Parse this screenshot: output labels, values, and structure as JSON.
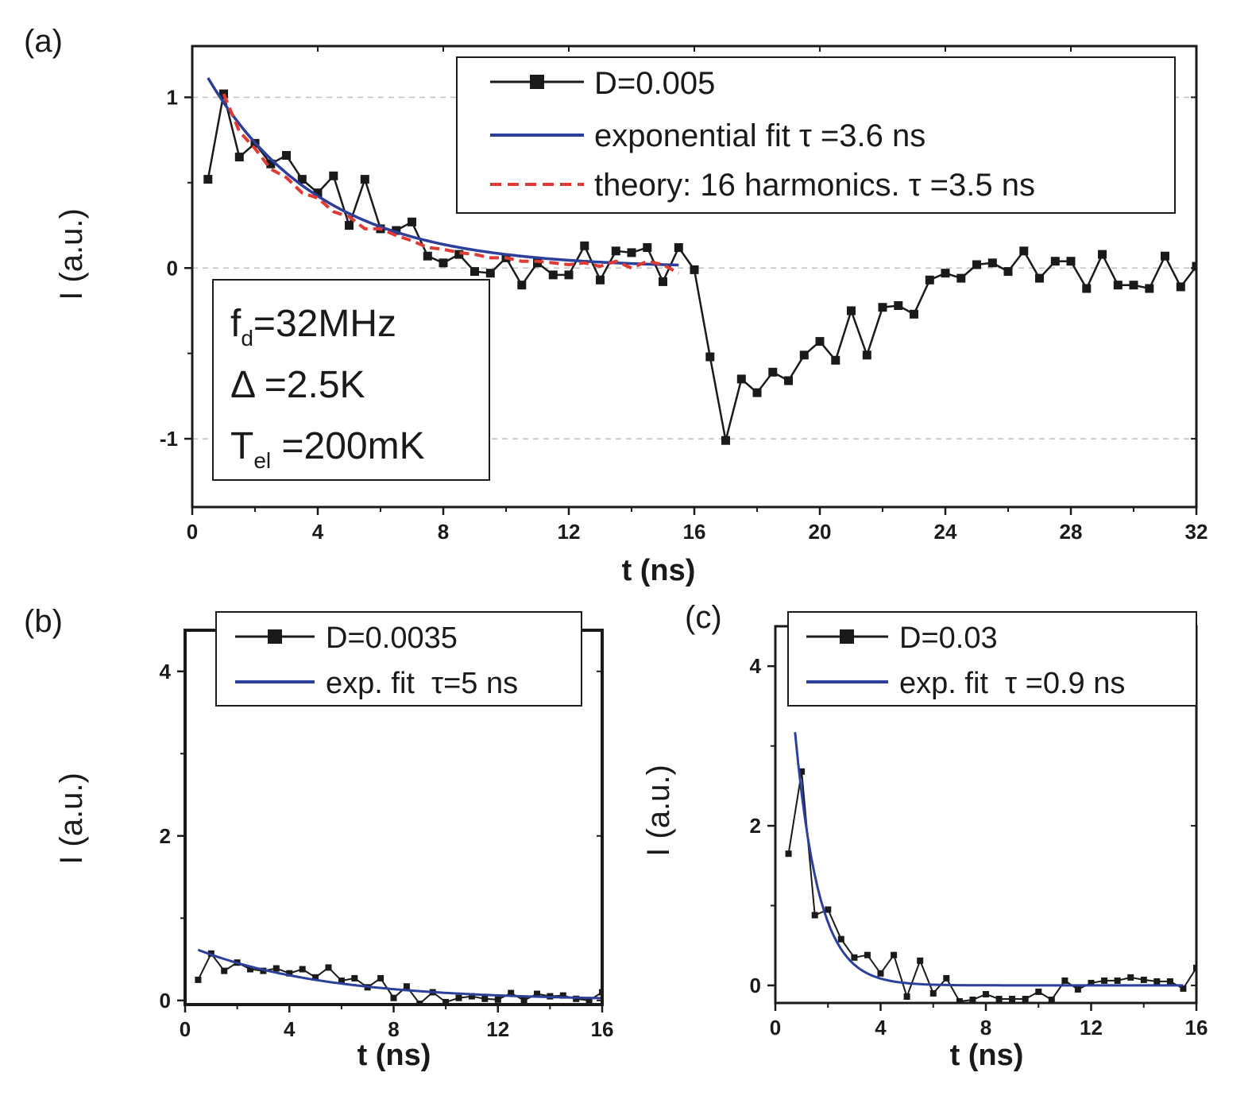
{
  "chart_data": [
    {
      "panel": "(a)",
      "type": "line",
      "xlabel": "t (ns)",
      "ylabel": "I (a.u.)",
      "xlim": [
        0,
        32
      ],
      "ylim": [
        -1.4,
        1.3
      ],
      "xticks": [
        "0",
        "4",
        "8",
        "12",
        "16",
        "20",
        "24",
        "28",
        "32"
      ],
      "yticks": [
        "-1",
        "0",
        "1"
      ],
      "grid_y": [
        -1,
        0,
        1
      ],
      "legend_position": "top-right",
      "annotation": {
        "f_main": "f",
        "f_sub": "d",
        "f_rest": "=32MHz",
        "delta": "Δ =2.5K",
        "t_main": "T",
        "t_sub": "el",
        "t_rest": " =200mK"
      },
      "series": [
        {
          "name": "D=0.005",
          "style": "black-squares-line",
          "x": [
            0.5,
            1.0,
            1.5,
            2.0,
            2.5,
            3.0,
            3.5,
            4.0,
            4.5,
            5.0,
            5.5,
            6.0,
            6.5,
            7.0,
            7.5,
            8.0,
            8.5,
            9.0,
            9.5,
            10.0,
            10.5,
            11.0,
            11.5,
            12.0,
            12.5,
            13.0,
            13.5,
            14.0,
            14.5,
            15.0,
            15.5,
            16.0,
            16.5,
            17.0,
            17.5,
            18.0,
            18.5,
            19.0,
            19.5,
            20.0,
            20.5,
            21.0,
            21.5,
            22.0,
            22.5,
            23.0,
            23.5,
            24.0,
            24.5,
            25.0,
            25.5,
            26.0,
            26.5,
            27.0,
            27.5,
            28.0,
            28.5,
            29.0,
            29.5,
            30.0,
            30.5,
            31.0,
            31.5,
            32.0
          ],
          "y": [
            0.52,
            1.02,
            0.65,
            0.73,
            0.61,
            0.66,
            0.52,
            0.44,
            0.54,
            0.25,
            0.52,
            0.23,
            0.22,
            0.27,
            0.07,
            0.03,
            0.08,
            -0.02,
            -0.03,
            0.06,
            -0.1,
            0.03,
            -0.04,
            -0.04,
            0.13,
            -0.07,
            0.1,
            0.09,
            0.12,
            -0.08,
            0.12,
            -0.01,
            -0.52,
            -1.01,
            -0.65,
            -0.73,
            -0.61,
            -0.66,
            -0.51,
            -0.43,
            -0.54,
            -0.25,
            -0.51,
            -0.23,
            -0.22,
            -0.27,
            -0.07,
            -0.03,
            -0.06,
            0.02,
            0.03,
            -0.02,
            0.1,
            -0.06,
            0.04,
            0.04,
            -0.12,
            0.08,
            -0.1,
            -0.1,
            -0.12,
            0.07,
            -0.11,
            0.01
          ]
        },
        {
          "name": "exponential fit τ =3.6 ns",
          "style": "blue-solid",
          "function": "exp",
          "amplitude": 1.28,
          "tau": 3.6,
          "x_range": [
            0.5,
            15.5
          ]
        },
        {
          "name": "theory: 16 harmonics. τ =3.5 ns",
          "style": "red-dashed",
          "x": [
            1.0,
            1.5,
            2.0,
            2.5,
            3.0,
            3.5,
            4.0,
            4.5,
            5.0,
            5.5,
            6.0,
            6.5,
            7.0,
            7.5,
            8.0,
            8.5,
            9.0,
            9.5,
            10.0,
            10.5,
            11.0,
            11.5,
            12.0,
            12.5,
            13.0,
            13.5,
            14.0,
            14.5,
            15.0,
            15.5
          ],
          "y": [
            1.02,
            0.8,
            0.7,
            0.58,
            0.53,
            0.44,
            0.41,
            0.33,
            0.3,
            0.23,
            0.23,
            0.19,
            0.16,
            0.12,
            0.11,
            0.09,
            0.08,
            0.06,
            0.06,
            0.04,
            0.04,
            0.03,
            0.02,
            0.03,
            0.01,
            0.04,
            0.0,
            0.04,
            0.02,
            -0.03
          ]
        }
      ]
    },
    {
      "panel": "(b)",
      "type": "line",
      "xlabel": "t (ns)",
      "ylabel": "I (a.u.)",
      "xlim": [
        0,
        16
      ],
      "ylim": [
        -0.05,
        4.5
      ],
      "xticks": [
        "0",
        "4",
        "8",
        "12",
        "16"
      ],
      "yticks": [
        "0",
        "2",
        "4"
      ],
      "legend_position": "top-right",
      "series": [
        {
          "name": "D=0.0035",
          "style": "black-squares-line",
          "x": [
            0.5,
            1.0,
            1.5,
            2.0,
            2.5,
            3.0,
            3.5,
            4.0,
            4.5,
            5.0,
            5.5,
            6.0,
            6.5,
            7.0,
            7.5,
            8.0,
            8.5,
            9.0,
            9.5,
            10.0,
            10.5,
            11.0,
            11.5,
            12.0,
            12.5,
            13.0,
            13.5,
            14.0,
            14.5,
            15.0,
            15.5,
            16.0
          ],
          "y": [
            0.25,
            0.57,
            0.36,
            0.46,
            0.38,
            0.36,
            0.39,
            0.33,
            0.38,
            0.28,
            0.4,
            0.24,
            0.27,
            0.16,
            0.27,
            0.03,
            0.17,
            -0.04,
            0.1,
            -0.02,
            0.03,
            0.05,
            0.02,
            0.01,
            0.09,
            0.0,
            0.08,
            0.05,
            0.06,
            0.02,
            0.0,
            0.1
          ]
        },
        {
          "name": "exp. fit  τ=5 ns",
          "style": "blue-solid",
          "function": "exp",
          "amplitude": 0.68,
          "tau": 5.0,
          "x_range": [
            0.5,
            16
          ]
        }
      ]
    },
    {
      "panel": "(c)",
      "type": "line",
      "xlabel": "t (ns)",
      "ylabel": "I (a.u.)",
      "xlim": [
        0,
        16
      ],
      "ylim": [
        -0.22,
        4.5
      ],
      "xticks": [
        "0",
        "4",
        "8",
        "12",
        "16"
      ],
      "yticks": [
        "0",
        "2",
        "4"
      ],
      "legend_position": "top-right",
      "series": [
        {
          "name": "D=0.03",
          "style": "black-squares-line",
          "x": [
            0.5,
            1.0,
            1.5,
            2.0,
            2.5,
            3.0,
            3.5,
            4.0,
            4.5,
            5.0,
            5.5,
            6.0,
            6.5,
            7.0,
            7.5,
            8.0,
            8.5,
            9.0,
            9.5,
            10.0,
            10.5,
            11.0,
            11.5,
            12.0,
            12.5,
            13.0,
            13.5,
            14.0,
            14.5,
            15.0,
            15.5,
            16.0
          ],
          "y": [
            1.65,
            2.68,
            0.88,
            0.95,
            0.58,
            0.35,
            0.38,
            0.15,
            0.38,
            -0.14,
            0.31,
            -0.1,
            0.09,
            -0.2,
            -0.18,
            -0.11,
            -0.17,
            -0.17,
            -0.17,
            -0.08,
            -0.18,
            0.06,
            -0.05,
            0.03,
            0.06,
            0.06,
            0.1,
            0.07,
            0.05,
            0.05,
            -0.04,
            0.22
          ]
        },
        {
          "name": "exp. fit  τ =0.9 ns",
          "style": "blue-solid",
          "function": "exp",
          "amplitude": 7.3,
          "tau": 0.9,
          "x_range": [
            0.75,
            15.5
          ]
        }
      ]
    }
  ],
  "colors": {
    "data": "#1a1a1a",
    "fit": "#2b3f9b",
    "theory": "#e03a34",
    "grid": "#bfbfbf"
  }
}
